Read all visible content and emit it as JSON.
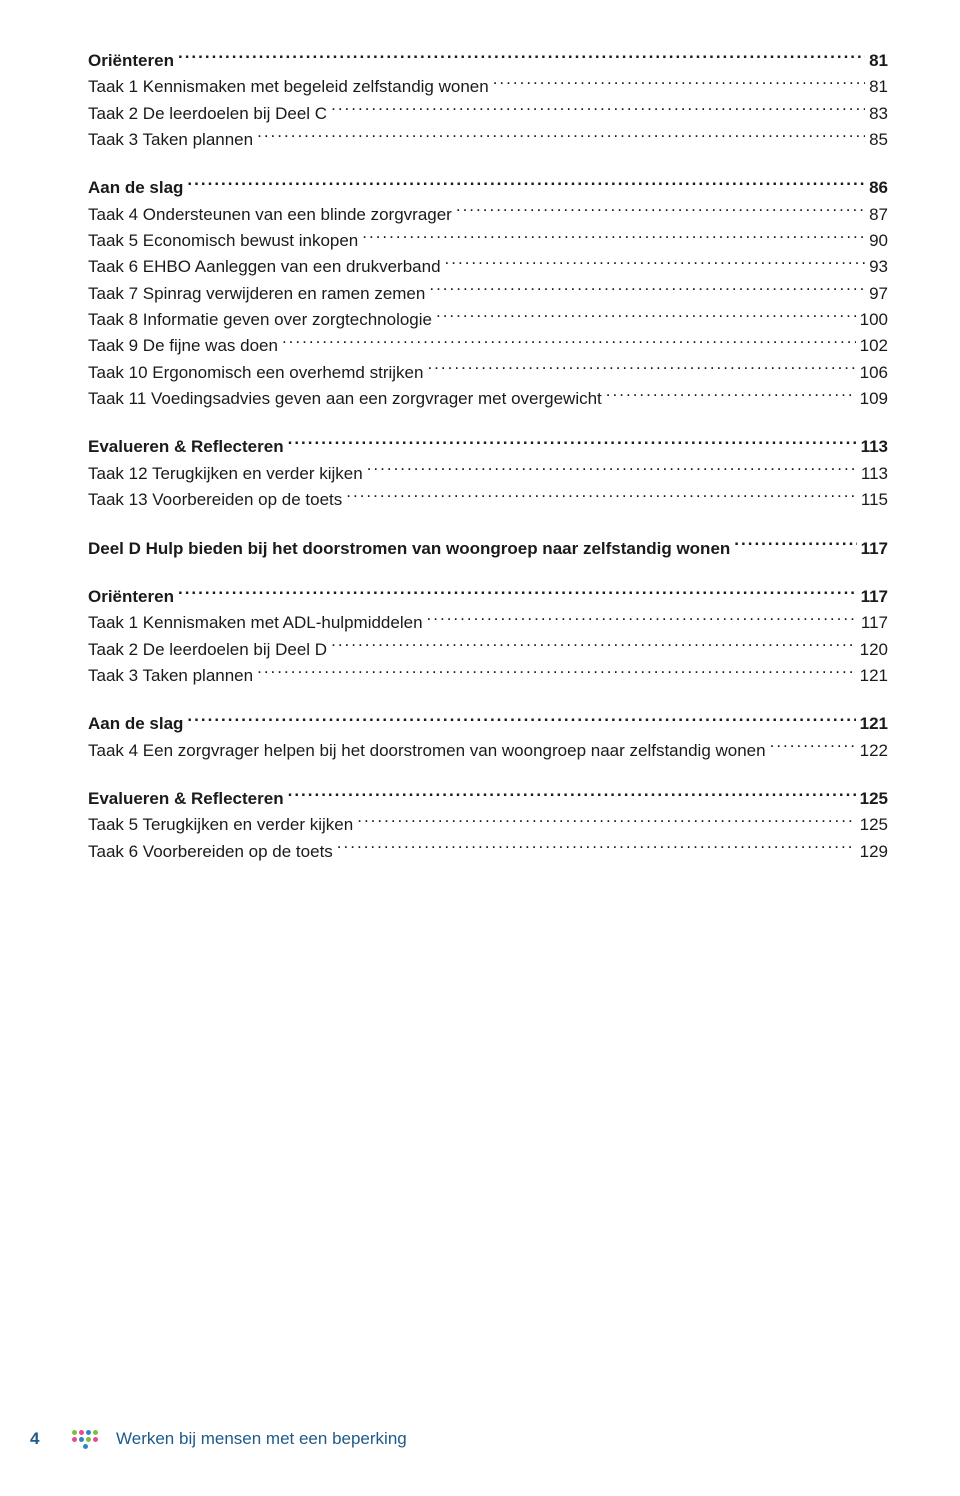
{
  "toc": [
    {
      "label": "Oriënteren",
      "page": "81",
      "bold": true
    },
    {
      "label": "Taak 1 Kennismaken met begeleid zelfstandig wonen",
      "page": "81"
    },
    {
      "label": "Taak 2 De leerdoelen bij Deel C",
      "page": "83"
    },
    {
      "label": "Taak 3 Taken plannen",
      "page": "85"
    },
    {
      "spacer": true
    },
    {
      "label": "Aan de slag",
      "page": "86",
      "bold": true
    },
    {
      "label": "Taak 4 Ondersteunen van een blinde zorgvrager",
      "page": "87"
    },
    {
      "label": "Taak 5 Economisch bewust inkopen",
      "page": "90"
    },
    {
      "label": "Taak 6 EHBO Aanleggen van een drukverband",
      "page": "93"
    },
    {
      "label": "Taak 7 Spinrag verwijderen en ramen zemen",
      "page": "97"
    },
    {
      "label": "Taak 8 Informatie geven over zorgtechnologie",
      "page": "100"
    },
    {
      "label": "Taak 9 De fijne was doen",
      "page": "102"
    },
    {
      "label": "Taak 10 Ergonomisch een overhemd strijken",
      "page": "106"
    },
    {
      "label": "Taak 11 Voedingsadvies geven aan een zorgvrager met overgewicht",
      "page": "109"
    },
    {
      "spacer": true
    },
    {
      "label": "Evalueren & Reflecteren",
      "page": "113",
      "bold": true
    },
    {
      "label": "Taak 12 Terugkijken en verder kijken",
      "page": "113"
    },
    {
      "label": "Taak 13 Voorbereiden op de toets",
      "page": "115"
    },
    {
      "spacer": true
    },
    {
      "label": "Deel D Hulp bieden bij het doorstromen van woongroep naar zelfstandig wonen",
      "page": "117",
      "bold": true
    },
    {
      "spacer": true
    },
    {
      "label": "Oriënteren",
      "page": "117",
      "bold": true
    },
    {
      "label": "Taak 1 Kennismaken met ADL-hulpmiddelen",
      "page": "117"
    },
    {
      "label": "Taak 2 De leerdoelen bij Deel D",
      "page": "120"
    },
    {
      "label": "Taak 3 Taken plannen",
      "page": "121"
    },
    {
      "spacer": true
    },
    {
      "label": "Aan de slag",
      "page": "121",
      "bold": true
    },
    {
      "label": "Taak 4 Een zorgvrager helpen bij het doorstromen van woongroep naar zelfstandig wonen",
      "page": "122"
    },
    {
      "spacer": true
    },
    {
      "label": "Evalueren & Reflecteren",
      "page": "125",
      "bold": true
    },
    {
      "label": "Taak 5 Terugkijken en verder kijken",
      "page": "125"
    },
    {
      "label": "Taak 6 Voorbereiden op de toets",
      "page": "129"
    }
  ],
  "footer": {
    "page_number": "4",
    "title": "Werken bij mensen met een beperking",
    "logo_colors": [
      "#7bbf3f",
      "#e94b8b",
      "#2f86c6",
      "#7bbf3f",
      "#e94b8b",
      "#2f86c6",
      "#7bbf3f",
      "#e94b8b",
      "#2f86c6"
    ],
    "accent_color": "#1d5a8a"
  }
}
